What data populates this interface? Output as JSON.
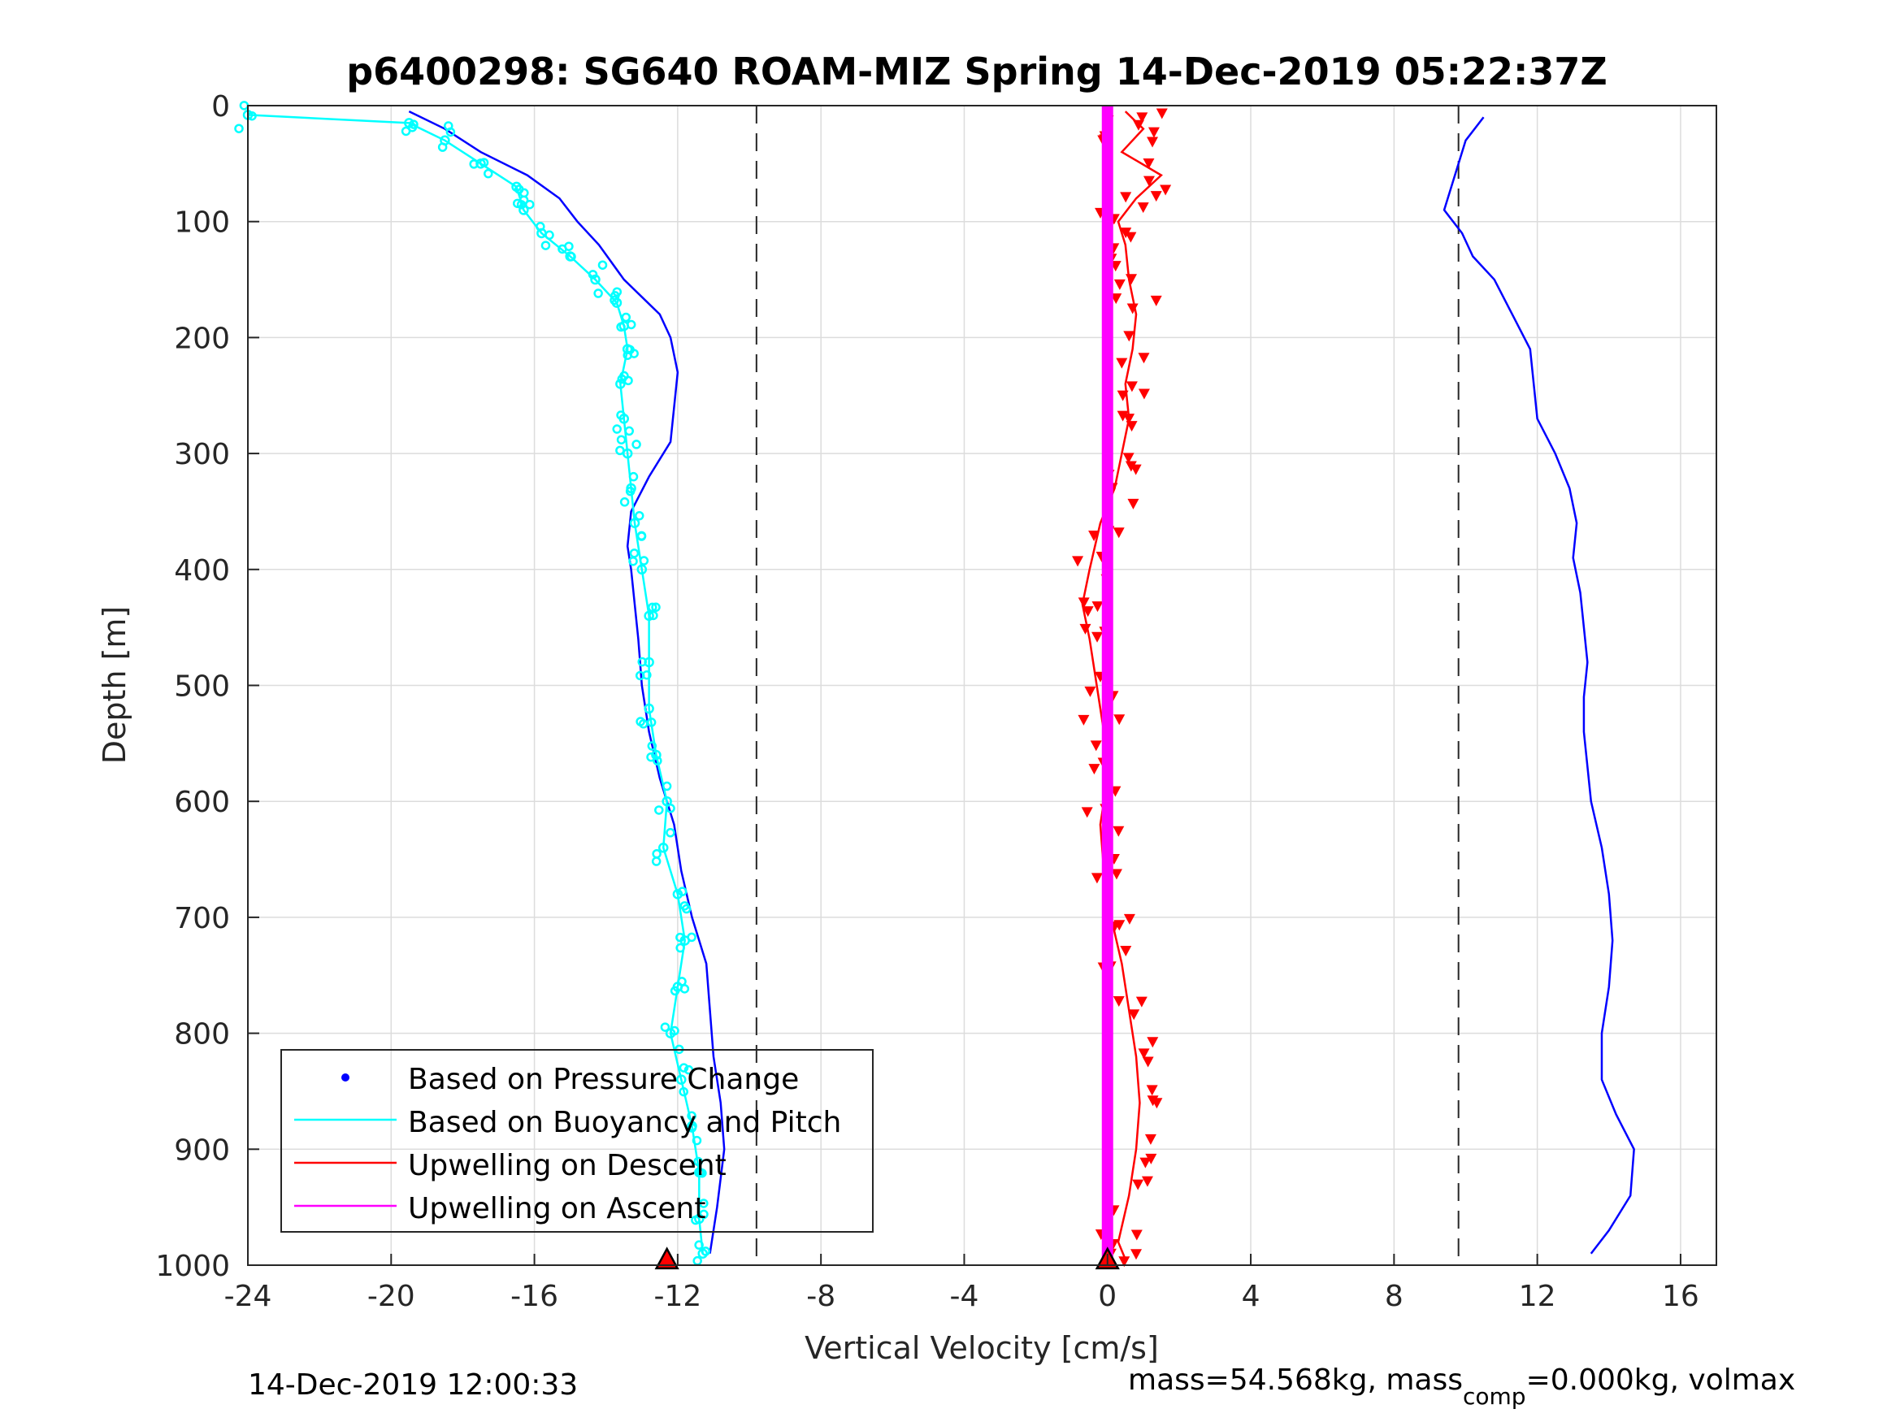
{
  "chart_data": {
    "type": "scatter",
    "title": "p6400298: SG640 ROAM-MIZ Spring 14-Dec-2019 05:22:37Z",
    "xlabel": "Vertical Velocity [cm/s]",
    "ylabel": "Depth [m]",
    "xlim": [
      -24,
      17
    ],
    "ylim": [
      0,
      1000
    ],
    "y_reversed": true,
    "grid": true,
    "x_ticks": [
      "-24",
      "-20",
      "-16",
      "-12",
      "-8",
      "-4",
      "0",
      "4",
      "8",
      "12",
      "16"
    ],
    "x_tick_values": [
      -24,
      -20,
      -16,
      -12,
      -8,
      -4,
      0,
      4,
      8,
      12,
      16
    ],
    "y_ticks": [
      "0",
      "100",
      "200",
      "300",
      "400",
      "500",
      "600",
      "700",
      "800",
      "900",
      "1000"
    ],
    "y_tick_values": [
      0,
      100,
      200,
      300,
      400,
      500,
      600,
      700,
      800,
      900,
      1000
    ],
    "reference_lines_x": [
      -9.8,
      9.8
    ],
    "legend": {
      "placement": "bottom-left",
      "entries": [
        {
          "label": "Based on Pressure Change",
          "color": "#0000ff",
          "marker": "dot"
        },
        {
          "label": "Based on Buoyancy and Pitch",
          "color": "#00ffff",
          "marker": "line"
        },
        {
          "label": "Upwelling on Descent",
          "color": "#ff0000",
          "marker": "line"
        },
        {
          "label": "Upwelling on Ascent",
          "color": "#ff00ff",
          "marker": "line"
        }
      ]
    },
    "series": [
      {
        "name": "Based on Pressure Change (descent)",
        "color": "#0000ff",
        "depth": [
          5,
          20,
          40,
          60,
          80,
          100,
          120,
          150,
          180,
          200,
          230,
          260,
          290,
          320,
          350,
          380,
          400,
          430,
          460,
          500,
          540,
          580,
          620,
          660,
          700,
          740,
          780,
          820,
          860,
          900,
          950,
          990
        ],
        "x": [
          -19.5,
          -18.5,
          -17.5,
          -16.2,
          -15.3,
          -14.8,
          -14.2,
          -13.5,
          -12.5,
          -12.2,
          -12.0,
          -12.1,
          -12.2,
          -12.8,
          -13.3,
          -13.4,
          -13.3,
          -13.2,
          -13.1,
          -13.0,
          -12.8,
          -12.5,
          -12.1,
          -11.9,
          -11.6,
          -11.2,
          -11.1,
          -11.0,
          -10.8,
          -10.7,
          -10.9,
          -11.1
        ]
      },
      {
        "name": "Based on Pressure Change (ascent)",
        "color": "#0000ff",
        "depth": [
          10,
          30,
          50,
          70,
          90,
          110,
          130,
          150,
          180,
          210,
          240,
          270,
          300,
          330,
          360,
          390,
          420,
          450,
          480,
          510,
          540,
          570,
          600,
          640,
          680,
          720,
          760,
          800,
          840,
          870,
          900,
          940,
          970,
          990
        ],
        "x": [
          10.5,
          10.0,
          9.8,
          9.6,
          9.4,
          9.9,
          10.2,
          10.8,
          11.3,
          11.8,
          11.9,
          12.0,
          12.5,
          12.9,
          13.1,
          13.0,
          13.2,
          13.3,
          13.4,
          13.3,
          13.3,
          13.4,
          13.5,
          13.8,
          14.0,
          14.1,
          14.0,
          13.8,
          13.8,
          14.2,
          14.7,
          14.6,
          14.0,
          13.5
        ]
      },
      {
        "name": "Based on Buoyancy and Pitch",
        "color": "#00ffff",
        "depth": [
          8,
          15,
          30,
          50,
          70,
          90,
          110,
          130,
          150,
          170,
          190,
          210,
          240,
          270,
          300,
          330,
          360,
          400,
          440,
          480,
          520,
          560,
          600,
          640,
          680,
          720,
          760,
          800,
          840,
          880,
          920,
          960,
          990
        ],
        "x": [
          -24,
          -19.5,
          -18.5,
          -17.5,
          -16.5,
          -16.3,
          -15.8,
          -15.0,
          -14.3,
          -13.7,
          -13.5,
          -13.4,
          -13.6,
          -13.5,
          -13.4,
          -13.3,
          -13.2,
          -13.0,
          -12.8,
          -12.8,
          -12.8,
          -12.6,
          -12.3,
          -12.4,
          -12.0,
          -11.8,
          -12.0,
          -12.2,
          -11.9,
          -11.6,
          -11.4,
          -11.4,
          -11.3
        ]
      },
      {
        "name": "Upwelling on Descent",
        "color": "#ff0000",
        "depth": [
          5,
          20,
          40,
          60,
          80,
          100,
          120,
          150,
          180,
          210,
          240,
          270,
          300,
          330,
          360,
          400,
          430,
          460,
          500,
          540,
          580,
          620,
          660,
          700,
          740,
          780,
          820,
          860,
          900,
          940,
          980,
          995
        ],
        "x": [
          0.5,
          1.0,
          0.4,
          1.5,
          0.8,
          0.3,
          0.5,
          0.6,
          0.8,
          0.7,
          0.5,
          0.6,
          0.4,
          0.2,
          -0.2,
          -0.5,
          -0.7,
          -0.5,
          -0.3,
          -0.1,
          0,
          -0.2,
          -0.1,
          0.1,
          0.4,
          0.6,
          0.8,
          0.9,
          0.8,
          0.6,
          0.3,
          0.5
        ]
      },
      {
        "name": "Upwelling on Ascent",
        "color": "#ff00ff",
        "depth": [
          0,
          1000
        ],
        "x": [
          0,
          0
        ]
      }
    ],
    "apogee_markers": [
      {
        "x": -12.3,
        "depth": 995,
        "color": "#ff0000"
      },
      {
        "x": 0,
        "depth": 995,
        "color": "#ff0000"
      }
    ]
  },
  "footer": {
    "timestamp": "14-Dec-2019 12:00:33",
    "mass_prefix": "mass=54.568kg, mass",
    "mass_sub": "comp",
    "mass_suffix": "=0.000kg, volmax"
  }
}
